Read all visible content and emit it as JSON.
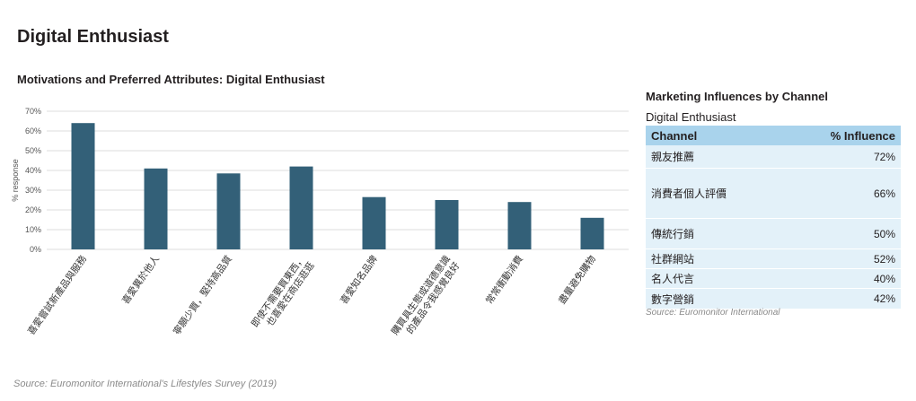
{
  "page": {
    "title": "Digital Enthusiast",
    "source": "Source: Euromonitor International's Lifestyles Survey (2019)"
  },
  "chart_data": {
    "type": "bar",
    "title": "Motivations and Preferred Attributes: Digital Enthusiast",
    "ylabel": "% response",
    "xlabel": "",
    "ylim": [
      0,
      70
    ],
    "yticks": [
      "0%",
      "10%",
      "20%",
      "30%",
      "40%",
      "50%",
      "60%",
      "70%"
    ],
    "grid": true,
    "bar_color": "#336078",
    "categories": [
      "喜愛嘗試新產品與服務",
      "喜愛異於他人",
      "寧願少買，堅持高品質",
      "即使不需要買東西，也喜愛在商店逛逛",
      "喜愛知名品牌",
      "購買具生態或道德意識的產品令我感覺良好",
      "常常衝動消費",
      "盡量避免購物"
    ],
    "category_lines": [
      [
        "喜愛嘗試新產品與服務"
      ],
      [
        "喜愛異於他人"
      ],
      [
        "寧願少買，堅持高品質"
      ],
      [
        "即使不需要買東西，",
        "也喜愛在商店逛逛"
      ],
      [
        "喜愛知名品牌"
      ],
      [
        "購買具生態或道德意識",
        "的產品令我感覺良好"
      ],
      [
        "常常衝動消費"
      ],
      [
        "盡量避免購物"
      ]
    ],
    "values": [
      64,
      41,
      38.5,
      42,
      26.5,
      25,
      24,
      16
    ]
  },
  "influences": {
    "title": "Marketing Influences by Channel",
    "subtitle": "Digital Enthusiast",
    "header_channel": "Channel",
    "header_influence": "% Influence",
    "rows": [
      {
        "channel": "親友推薦",
        "value": "72%"
      },
      {
        "channel": "消費者個人評價",
        "value": "66%"
      },
      {
        "channel": "傳統行銷",
        "value": "50%"
      },
      {
        "channel": "社群網站",
        "value": "52%"
      },
      {
        "channel": "名人代言",
        "value": "40%"
      },
      {
        "channel": "數字營銷",
        "value": "42%"
      }
    ],
    "source": "Source: Euromonitor International"
  }
}
